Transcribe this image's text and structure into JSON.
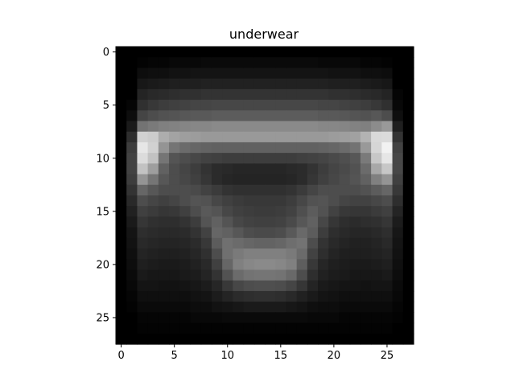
{
  "chart_data": {
    "type": "heatmap",
    "title": "underwear",
    "xlabel": "",
    "ylabel": "",
    "colormap": "gray",
    "value_range": [
      0,
      1
    ],
    "rows": 28,
    "cols": 28,
    "xlim": [
      -0.5,
      27.5
    ],
    "ylim": [
      27.5,
      -0.5
    ],
    "x_ticks": [
      0,
      5,
      10,
      15,
      20,
      25
    ],
    "y_ticks": [
      0,
      5,
      10,
      15,
      20,
      25
    ],
    "grid": false,
    "legend": "none",
    "values": [
      [
        0,
        0,
        0,
        0,
        0,
        0,
        0,
        0,
        0,
        0,
        0,
        0,
        0,
        0,
        0,
        0,
        0,
        0,
        0,
        0,
        0,
        0,
        0,
        0,
        0,
        0,
        0,
        0
      ],
      [
        0,
        0,
        0.01,
        0.02,
        0.02,
        0.03,
        0.03,
        0.03,
        0.04,
        0.04,
        0.04,
        0.04,
        0.04,
        0.04,
        0.04,
        0.04,
        0.04,
        0.04,
        0.04,
        0.03,
        0.03,
        0.03,
        0.03,
        0.02,
        0.02,
        0.01,
        0,
        0
      ],
      [
        0,
        0,
        0.05,
        0.06,
        0.06,
        0.07,
        0.07,
        0.08,
        0.08,
        0.08,
        0.08,
        0.08,
        0.08,
        0.08,
        0.08,
        0.08,
        0.08,
        0.08,
        0.08,
        0.08,
        0.07,
        0.07,
        0.07,
        0.06,
        0.06,
        0.05,
        0,
        0
      ],
      [
        0,
        0,
        0.09,
        0.1,
        0.11,
        0.12,
        0.12,
        0.12,
        0.13,
        0.13,
        0.13,
        0.13,
        0.13,
        0.13,
        0.13,
        0.13,
        0.13,
        0.13,
        0.13,
        0.13,
        0.12,
        0.12,
        0.12,
        0.11,
        0.1,
        0.09,
        0,
        0
      ],
      [
        0,
        0,
        0.14,
        0.16,
        0.17,
        0.18,
        0.19,
        0.19,
        0.2,
        0.2,
        0.2,
        0.2,
        0.2,
        0.2,
        0.2,
        0.2,
        0.2,
        0.2,
        0.2,
        0.2,
        0.19,
        0.19,
        0.18,
        0.17,
        0.16,
        0.14,
        0.02,
        0
      ],
      [
        0,
        0.02,
        0.19,
        0.22,
        0.24,
        0.25,
        0.26,
        0.27,
        0.27,
        0.28,
        0.28,
        0.28,
        0.28,
        0.28,
        0.28,
        0.28,
        0.28,
        0.28,
        0.28,
        0.27,
        0.27,
        0.26,
        0.25,
        0.24,
        0.22,
        0.19,
        0.03,
        0
      ],
      [
        0,
        0.05,
        0.27,
        0.3,
        0.32,
        0.33,
        0.34,
        0.35,
        0.35,
        0.36,
        0.36,
        0.36,
        0.36,
        0.36,
        0.36,
        0.36,
        0.36,
        0.36,
        0.36,
        0.35,
        0.35,
        0.34,
        0.33,
        0.32,
        0.34,
        0.3,
        0.06,
        0
      ],
      [
        0,
        0.1,
        0.45,
        0.48,
        0.5,
        0.51,
        0.52,
        0.53,
        0.53,
        0.54,
        0.54,
        0.54,
        0.54,
        0.54,
        0.54,
        0.54,
        0.54,
        0.54,
        0.54,
        0.53,
        0.53,
        0.52,
        0.51,
        0.5,
        0.55,
        0.6,
        0.12,
        0
      ],
      [
        0,
        0.18,
        0.82,
        0.8,
        0.68,
        0.64,
        0.62,
        0.61,
        0.6,
        0.6,
        0.6,
        0.6,
        0.6,
        0.6,
        0.6,
        0.6,
        0.6,
        0.6,
        0.6,
        0.6,
        0.61,
        0.62,
        0.63,
        0.7,
        0.85,
        0.86,
        0.2,
        0
      ],
      [
        0,
        0.24,
        0.9,
        0.82,
        0.58,
        0.46,
        0.42,
        0.4,
        0.39,
        0.38,
        0.38,
        0.38,
        0.38,
        0.38,
        0.38,
        0.38,
        0.38,
        0.38,
        0.38,
        0.39,
        0.4,
        0.42,
        0.45,
        0.6,
        0.84,
        0.95,
        0.26,
        0
      ],
      [
        0,
        0.26,
        0.86,
        0.76,
        0.46,
        0.33,
        0.3,
        0.28,
        0.26,
        0.25,
        0.24,
        0.24,
        0.24,
        0.24,
        0.24,
        0.24,
        0.24,
        0.25,
        0.26,
        0.27,
        0.29,
        0.31,
        0.34,
        0.48,
        0.78,
        0.9,
        0.28,
        0
      ],
      [
        0,
        0.26,
        0.76,
        0.62,
        0.38,
        0.3,
        0.27,
        0.24,
        0.2,
        0.17,
        0.16,
        0.15,
        0.15,
        0.15,
        0.15,
        0.15,
        0.16,
        0.17,
        0.2,
        0.24,
        0.27,
        0.29,
        0.32,
        0.42,
        0.66,
        0.78,
        0.28,
        0
      ],
      [
        0,
        0.24,
        0.58,
        0.46,
        0.34,
        0.3,
        0.28,
        0.25,
        0.21,
        0.17,
        0.15,
        0.14,
        0.14,
        0.14,
        0.14,
        0.14,
        0.15,
        0.17,
        0.21,
        0.25,
        0.28,
        0.3,
        0.33,
        0.38,
        0.5,
        0.58,
        0.25,
        0
      ],
      [
        0,
        0.2,
        0.4,
        0.34,
        0.3,
        0.3,
        0.3,
        0.29,
        0.26,
        0.23,
        0.2,
        0.19,
        0.19,
        0.19,
        0.19,
        0.19,
        0.2,
        0.23,
        0.27,
        0.3,
        0.3,
        0.3,
        0.3,
        0.32,
        0.36,
        0.4,
        0.22,
        0
      ],
      [
        0,
        0.16,
        0.3,
        0.27,
        0.25,
        0.27,
        0.3,
        0.33,
        0.32,
        0.28,
        0.25,
        0.23,
        0.22,
        0.22,
        0.22,
        0.22,
        0.24,
        0.28,
        0.32,
        0.33,
        0.3,
        0.27,
        0.26,
        0.26,
        0.28,
        0.3,
        0.18,
        0
      ],
      [
        0,
        0.13,
        0.25,
        0.23,
        0.21,
        0.22,
        0.25,
        0.3,
        0.35,
        0.33,
        0.28,
        0.25,
        0.24,
        0.23,
        0.23,
        0.24,
        0.26,
        0.31,
        0.36,
        0.32,
        0.26,
        0.22,
        0.21,
        0.21,
        0.23,
        0.25,
        0.14,
        0
      ],
      [
        0,
        0.1,
        0.21,
        0.19,
        0.18,
        0.18,
        0.2,
        0.24,
        0.33,
        0.38,
        0.33,
        0.28,
        0.26,
        0.25,
        0.25,
        0.26,
        0.29,
        0.34,
        0.38,
        0.28,
        0.21,
        0.18,
        0.17,
        0.18,
        0.19,
        0.21,
        0.11,
        0
      ],
      [
        0,
        0.08,
        0.18,
        0.17,
        0.16,
        0.16,
        0.17,
        0.2,
        0.26,
        0.4,
        0.38,
        0.34,
        0.3,
        0.29,
        0.29,
        0.3,
        0.35,
        0.41,
        0.36,
        0.24,
        0.18,
        0.16,
        0.15,
        0.15,
        0.16,
        0.18,
        0.09,
        0
      ],
      [
        0,
        0.07,
        0.16,
        0.15,
        0.14,
        0.14,
        0.15,
        0.17,
        0.22,
        0.36,
        0.44,
        0.42,
        0.4,
        0.39,
        0.39,
        0.4,
        0.43,
        0.45,
        0.3,
        0.2,
        0.16,
        0.14,
        0.13,
        0.13,
        0.14,
        0.16,
        0.08,
        0
      ],
      [
        0,
        0.06,
        0.14,
        0.13,
        0.12,
        0.12,
        0.13,
        0.15,
        0.19,
        0.3,
        0.44,
        0.48,
        0.5,
        0.5,
        0.5,
        0.5,
        0.48,
        0.42,
        0.26,
        0.18,
        0.14,
        0.12,
        0.12,
        0.12,
        0.13,
        0.14,
        0.07,
        0
      ],
      [
        0,
        0.05,
        0.12,
        0.11,
        0.1,
        0.1,
        0.11,
        0.13,
        0.16,
        0.25,
        0.4,
        0.5,
        0.53,
        0.54,
        0.54,
        0.53,
        0.5,
        0.37,
        0.22,
        0.15,
        0.12,
        0.11,
        0.1,
        0.1,
        0.11,
        0.12,
        0.06,
        0
      ],
      [
        0,
        0.04,
        0.1,
        0.09,
        0.09,
        0.09,
        0.1,
        0.11,
        0.14,
        0.2,
        0.32,
        0.42,
        0.45,
        0.46,
        0.46,
        0.45,
        0.41,
        0.3,
        0.18,
        0.13,
        0.11,
        0.1,
        0.09,
        0.09,
        0.09,
        0.1,
        0.05,
        0
      ],
      [
        0,
        0.03,
        0.08,
        0.08,
        0.07,
        0.07,
        0.08,
        0.09,
        0.11,
        0.15,
        0.22,
        0.28,
        0.3,
        0.31,
        0.31,
        0.3,
        0.27,
        0.21,
        0.14,
        0.1,
        0.09,
        0.08,
        0.08,
        0.07,
        0.08,
        0.08,
        0.04,
        0
      ],
      [
        0,
        0.02,
        0.06,
        0.06,
        0.06,
        0.06,
        0.06,
        0.07,
        0.08,
        0.11,
        0.14,
        0.17,
        0.18,
        0.19,
        0.19,
        0.18,
        0.16,
        0.13,
        0.1,
        0.08,
        0.07,
        0.06,
        0.06,
        0.06,
        0.06,
        0.06,
        0.03,
        0
      ],
      [
        0,
        0.01,
        0.04,
        0.04,
        0.04,
        0.04,
        0.04,
        0.05,
        0.05,
        0.07,
        0.08,
        0.09,
        0.1,
        0.1,
        0.1,
        0.1,
        0.09,
        0.08,
        0.06,
        0.05,
        0.05,
        0.04,
        0.04,
        0.04,
        0.04,
        0.04,
        0.02,
        0
      ],
      [
        0,
        0,
        0.02,
        0.02,
        0.02,
        0.02,
        0.02,
        0.03,
        0.03,
        0.03,
        0.04,
        0.04,
        0.04,
        0.04,
        0.04,
        0.04,
        0.04,
        0.04,
        0.03,
        0.03,
        0.03,
        0.02,
        0.02,
        0.02,
        0.02,
        0.02,
        0.01,
        0
      ],
      [
        0,
        0,
        0.01,
        0.01,
        0.01,
        0.01,
        0.01,
        0.01,
        0.01,
        0.01,
        0.01,
        0.01,
        0.01,
        0.01,
        0.01,
        0.01,
        0.01,
        0.01,
        0.01,
        0.01,
        0.01,
        0.01,
        0.01,
        0.01,
        0.01,
        0.01,
        0,
        0
      ],
      [
        0,
        0,
        0,
        0,
        0,
        0,
        0,
        0,
        0,
        0,
        0,
        0,
        0,
        0,
        0,
        0,
        0,
        0,
        0,
        0,
        0,
        0,
        0,
        0,
        0,
        0,
        0,
        0
      ]
    ]
  }
}
